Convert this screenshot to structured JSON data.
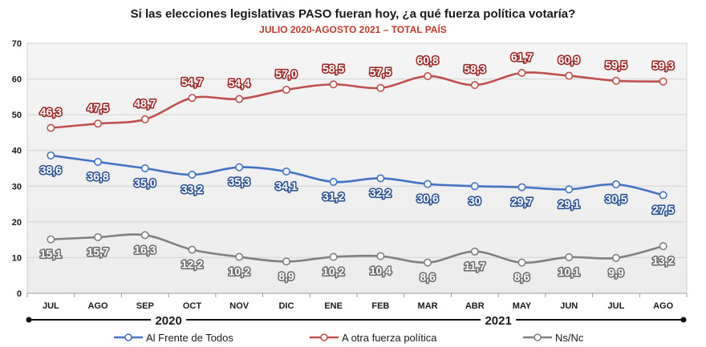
{
  "chart_data": {
    "type": "line",
    "title": "Si las elecciones legislativas PASO fueran hoy, ¿a qué fuerza política votaría?",
    "subtitle": "JULIO 2020-AGOSTO 2021 – TOTAL PAÍS",
    "categories": [
      "JUL",
      "AGO",
      "SEP",
      "OCT",
      "NOV",
      "DIC",
      "ENE",
      "FEB",
      "MAR",
      "ABR",
      "MAY",
      "JUN",
      "JUL",
      "AGO"
    ],
    "year_labels": [
      "2020",
      "2021"
    ],
    "ylim": [
      0,
      70
    ],
    "yticks": [
      0,
      10,
      20,
      30,
      40,
      50,
      60,
      70
    ],
    "grid": true,
    "legend_position": "bottom",
    "series": [
      {
        "name": "Al Frente de Todos",
        "color": "#4472c4",
        "label_color": "#2f5597",
        "values": [
          38.6,
          36.8,
          35.0,
          33.2,
          35.3,
          34.1,
          31.2,
          32.2,
          30.6,
          30,
          29.7,
          29.1,
          30.5,
          27.5
        ],
        "labels": [
          "38,6",
          "36,8",
          "35,0",
          "33,2",
          "35,3",
          "34,1",
          "31,2",
          "32,2",
          "30,6",
          "30",
          "29,7",
          "29,1",
          "30,5",
          "27,5"
        ]
      },
      {
        "name": "A otra fuerza política",
        "color": "#c0504d",
        "label_color": "#9e2a2a",
        "values": [
          46.3,
          47.5,
          48.7,
          54.7,
          54.4,
          57.0,
          58.5,
          57.5,
          60.8,
          58.3,
          61.7,
          60.9,
          59.5,
          59.3
        ],
        "labels": [
          "46,3",
          "47,5",
          "48,7",
          "54,7",
          "54,4",
          "57,0",
          "58,5",
          "57,5",
          "60,8",
          "58,3",
          "61,7",
          "60,9",
          "59,5",
          "59,3"
        ]
      },
      {
        "name": "Ns/Nc",
        "color": "#808080",
        "label_color": "#6e6e6e",
        "values": [
          15.1,
          15.7,
          16.3,
          12.2,
          10.2,
          8.9,
          10.2,
          10.4,
          8.6,
          11.7,
          8.6,
          10.1,
          9.9,
          13.2
        ],
        "labels": [
          "15,1",
          "15,7",
          "16,3",
          "12,2",
          "10,2",
          "8,9",
          "10,2",
          "10,4",
          "8,6",
          "11,7",
          "8,6",
          "10,1",
          "9,9",
          "13,2"
        ]
      }
    ]
  }
}
